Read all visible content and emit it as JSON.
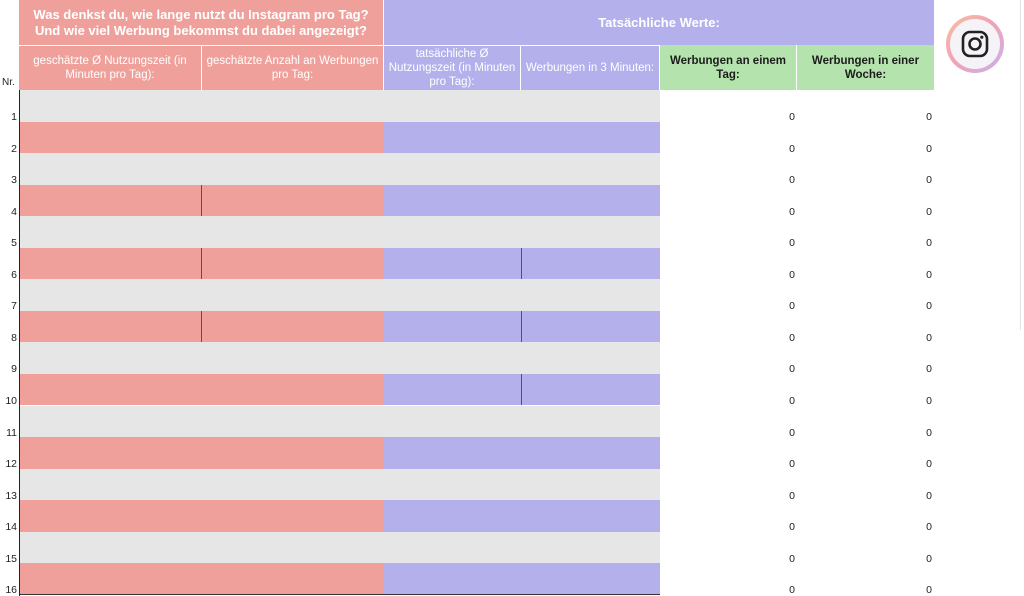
{
  "headers": {
    "estimate_group": "Was denkst du, wie lange nutzt du Instagram pro Tag?\nUnd wie viel Werbung bekommst du dabei angezeigt?",
    "actual_group": "Tatsächliche Werte:",
    "col_estimated_time": "geschätzte Ø Nutzungszeit (in Minuten pro Tag):",
    "col_estimated_ads": "geschätzte Anzahl an Werbungen pro Tag:",
    "col_actual_time": "tatsächliche Ø Nutzungszeit (in Minuten pro Tag):",
    "col_ads_3min": "Werbungen in 3 Minuten:",
    "col_ads_day": "Werbungen an einem Tag:",
    "col_ads_week": "Werbungen in einer Woche:",
    "nr": "Nr."
  },
  "rows": [
    {
      "nr": "1",
      "ads_day": "0",
      "ads_week": "0"
    },
    {
      "nr": "2",
      "ads_day": "0",
      "ads_week": "0"
    },
    {
      "nr": "3",
      "ads_day": "0",
      "ads_week": "0"
    },
    {
      "nr": "4",
      "ads_day": "0",
      "ads_week": "0"
    },
    {
      "nr": "5",
      "ads_day": "0",
      "ads_week": "0"
    },
    {
      "nr": "6",
      "ads_day": "0",
      "ads_week": "0"
    },
    {
      "nr": "7",
      "ads_day": "0",
      "ads_week": "0"
    },
    {
      "nr": "8",
      "ads_day": "0",
      "ads_week": "0"
    },
    {
      "nr": "9",
      "ads_day": "0",
      "ads_week": "0"
    },
    {
      "nr": "10",
      "ads_day": "0",
      "ads_week": "0"
    },
    {
      "nr": "11",
      "ads_day": "0",
      "ads_week": "0"
    },
    {
      "nr": "12",
      "ads_day": "0",
      "ads_week": "0"
    },
    {
      "nr": "13",
      "ads_day": "0",
      "ads_week": "0"
    },
    {
      "nr": "14",
      "ads_day": "0",
      "ads_week": "0"
    },
    {
      "nr": "15",
      "ads_day": "0",
      "ads_week": "0"
    },
    {
      "nr": "16",
      "ads_day": "0",
      "ads_week": "0"
    }
  ],
  "colors": {
    "pink": "#f0a09a",
    "purple": "#b3b0ec",
    "green": "#b5e3ae",
    "gray": "#e6e6e6"
  },
  "icons": {
    "logo": "instagram-icon"
  }
}
